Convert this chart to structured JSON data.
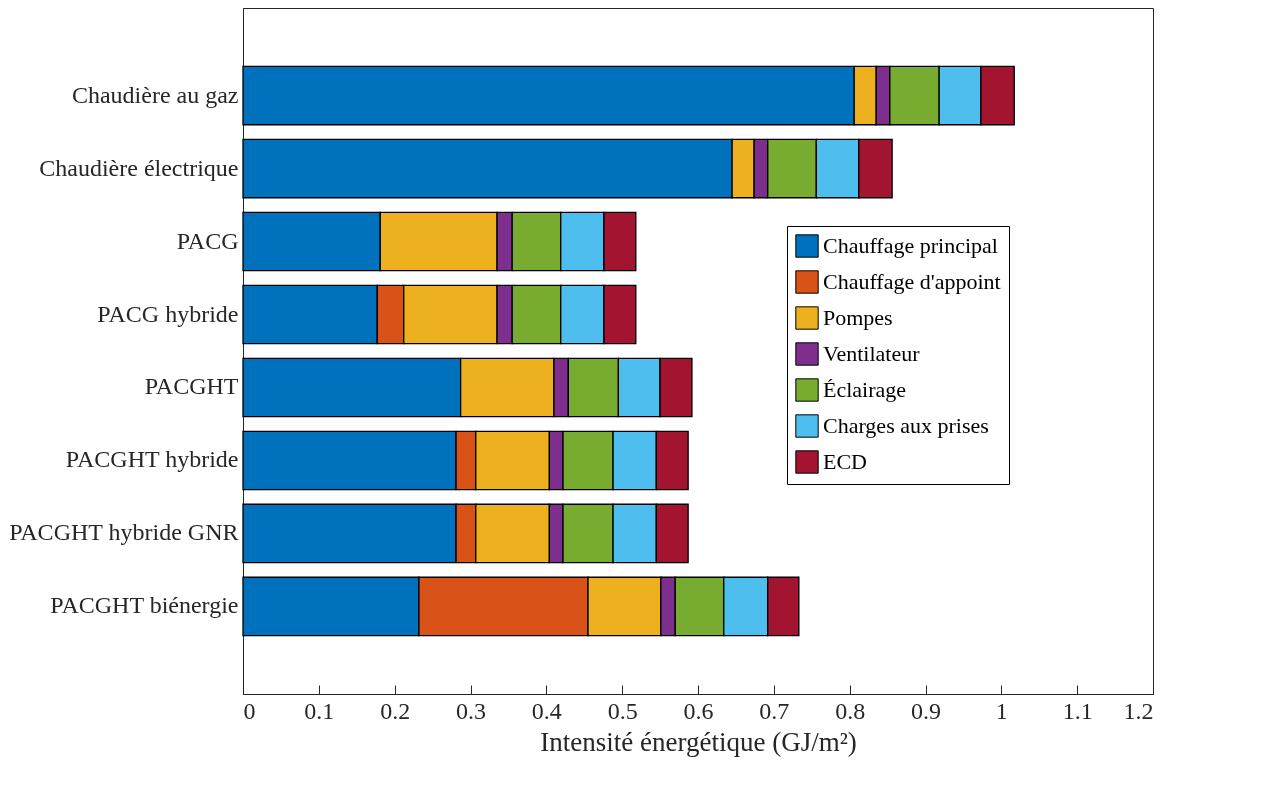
{
  "chart_data": {
    "type": "bar",
    "orientation": "horizontal",
    "stacked": true,
    "xlabel": "Intensité énergétique (GJ/m²)",
    "categories": [
      "Chaudière au gaz",
      "Chaudière électrique",
      "PACG",
      "PACG hybride",
      "PACGHT",
      "PACGHT hybride",
      "PACGHT hybride GNR",
      "PACGHT biénergie"
    ],
    "series": [
      {
        "name": "Chauffage principal",
        "color": "#0072bd",
        "values": [
          0.806,
          0.645,
          0.181,
          0.177,
          0.287,
          0.281,
          0.281,
          0.232
        ]
      },
      {
        "name": "Chauffage d'appoint",
        "color": "#d95319",
        "values": [
          null,
          null,
          null,
          0.035,
          null,
          0.026,
          0.026,
          0.223
        ]
      },
      {
        "name": "Pompes",
        "color": "#edb120",
        "values": [
          0.029,
          0.029,
          0.154,
          0.123,
          0.123,
          0.097,
          0.097,
          0.096
        ]
      },
      {
        "name": "Ventilateur",
        "color": "#7e2f8e",
        "values": [
          0.018,
          0.018,
          0.02,
          0.02,
          0.019,
          0.018,
          0.018,
          0.019
        ]
      },
      {
        "name": "Éclairage",
        "color": "#77ac30",
        "values": [
          0.065,
          0.064,
          0.064,
          0.064,
          0.066,
          0.066,
          0.066,
          0.064
        ]
      },
      {
        "name": "Charges aux prises",
        "color": "#4dbeee",
        "values": [
          0.055,
          0.056,
          0.057,
          0.057,
          0.055,
          0.057,
          0.057,
          0.058
        ]
      },
      {
        "name": "ECD",
        "color": "#a2142f",
        "values": [
          0.044,
          0.044,
          0.042,
          0.042,
          0.042,
          0.042,
          0.042,
          0.041
        ]
      }
    ],
    "xlim": [
      0,
      1.2
    ],
    "xticks": [
      0,
      0.1,
      0.2,
      0.3,
      0.4,
      0.5,
      0.6,
      0.7,
      0.8,
      0.9,
      1,
      1.1,
      1.2
    ],
    "grid": false,
    "legend": "right"
  }
}
